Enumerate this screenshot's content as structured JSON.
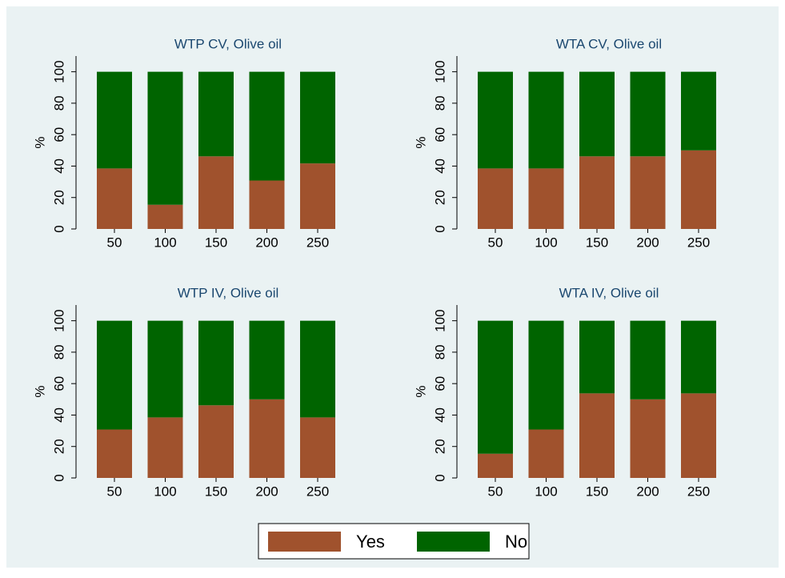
{
  "chart_data": [
    {
      "type": "bar",
      "stacked": true,
      "title": "WTP CV, Olive oil",
      "y_label": "%",
      "categories": [
        "50",
        "100",
        "150",
        "200",
        "250"
      ],
      "series": [
        {
          "name": "Yes",
          "color": "#a0522d",
          "values": [
            38.5,
            15.4,
            46.2,
            30.8,
            41.7
          ]
        },
        {
          "name": "No",
          "color": "#006400",
          "values": [
            61.5,
            84.6,
            53.8,
            69.2,
            58.3
          ]
        }
      ],
      "ylim": [
        0,
        110
      ],
      "yticks": [
        0,
        20,
        40,
        60,
        80,
        100
      ]
    },
    {
      "type": "bar",
      "stacked": true,
      "title": "WTA CV, Olive oil",
      "y_label": "%",
      "categories": [
        "50",
        "100",
        "150",
        "200",
        "250"
      ],
      "series": [
        {
          "name": "Yes",
          "color": "#a0522d",
          "values": [
            38.5,
            38.5,
            46.2,
            46.2,
            50
          ]
        },
        {
          "name": "No",
          "color": "#006400",
          "values": [
            61.5,
            61.5,
            53.8,
            53.8,
            50
          ]
        }
      ],
      "ylim": [
        0,
        110
      ],
      "yticks": [
        0,
        20,
        40,
        60,
        80,
        100
      ]
    },
    {
      "type": "bar",
      "stacked": true,
      "title": "WTP IV, Olive oil",
      "y_label": "%",
      "categories": [
        "50",
        "100",
        "150",
        "200",
        "250"
      ],
      "series": [
        {
          "name": "Yes",
          "color": "#a0522d",
          "values": [
            30.8,
            38.5,
            46.2,
            50,
            38.5
          ]
        },
        {
          "name": "No",
          "color": "#006400",
          "values": [
            69.2,
            61.5,
            53.8,
            50,
            61.5
          ]
        }
      ],
      "ylim": [
        0,
        110
      ],
      "yticks": [
        0,
        20,
        40,
        60,
        80,
        100
      ]
    },
    {
      "type": "bar",
      "stacked": true,
      "title": "WTA IV, Olive oil",
      "y_label": "%",
      "categories": [
        "50",
        "100",
        "150",
        "200",
        "250"
      ],
      "series": [
        {
          "name": "Yes",
          "color": "#a0522d",
          "values": [
            15.4,
            30.8,
            53.8,
            50,
            53.8
          ]
        },
        {
          "name": "No",
          "color": "#006400",
          "values": [
            84.6,
            69.2,
            46.2,
            50,
            46.2
          ]
        }
      ],
      "ylim": [
        0,
        110
      ],
      "yticks": [
        0,
        20,
        40,
        60,
        80,
        100
      ]
    }
  ]
}
